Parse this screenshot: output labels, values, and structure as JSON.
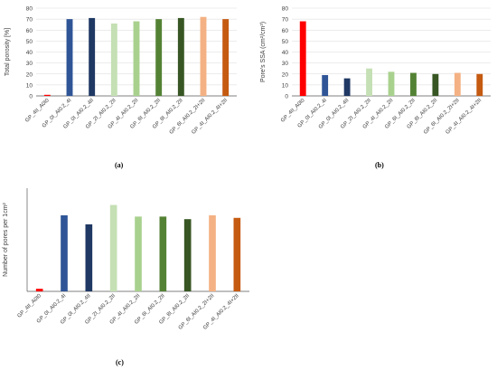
{
  "colors": {
    "red": "#ff0000",
    "blue": "#2f5597",
    "navy": "#1f3864",
    "light_green": "#c5e0b4",
    "mid_green": "#a9d18e",
    "green": "#548235",
    "dark_green": "#375623",
    "peach": "#f4b183",
    "orange": "#c55a11",
    "grid": "#d9d9d9",
    "axis": "#595959"
  },
  "chart_data": [
    {
      "type": "bar",
      "caption": "(a)",
      "ylabel": "Total porosity [%]",
      "xlabel": "",
      "ylim": [
        0,
        80
      ],
      "yticks": [
        "0",
        "10",
        "20",
        "30",
        "40",
        "50",
        "60",
        "70",
        "80"
      ],
      "grid": true,
      "categories": [
        "GP_4II_A0I0",
        "GP_0I_AI0.2_4I",
        "GP_0I_AI0.2_4II",
        "GP_2I_AI0.2_2II",
        "GP_4I_AI0.2_2II",
        "GP_6I_AI0.2_2II",
        "GP_8I_AI0.2_2II",
        "GP_6I_AI0.2_2I+2II",
        "GP_4I_AI0.2_4I+2II"
      ],
      "values": [
        1,
        70,
        71,
        66,
        68,
        70,
        71,
        72,
        70
      ],
      "bar_colors": [
        "red",
        "blue",
        "navy",
        "light_green",
        "mid_green",
        "green",
        "dark_green",
        "peach",
        "orange"
      ]
    },
    {
      "type": "bar",
      "caption": "(b)",
      "ylabel": "Pore's SSA  (cm²/cm³)",
      "xlabel": "",
      "ylim": [
        0,
        80
      ],
      "yticks": [
        "0",
        "10",
        "20",
        "30",
        "40",
        "50",
        "60",
        "70",
        "80"
      ],
      "grid": true,
      "categories": [
        "GP_4II_A0I0",
        "GP_0I_AI0.2_4I",
        "GP_0I_AI0.2_4II",
        "GP_2I_AI0.2_2II",
        "GP_4I_AI0.2_2II",
        "GP_6I_AI0.2_2II",
        "GP_8I_AI0.2_2II",
        "GP_6I_AI0.2_2I+2II",
        "GP_4I_AI0.2_4I+2II"
      ],
      "values": [
        68,
        19,
        16,
        25,
        22,
        21,
        20,
        21,
        20
      ],
      "bar_colors": [
        "red",
        "blue",
        "navy",
        "light_green",
        "mid_green",
        "green",
        "dark_green",
        "peach",
        "orange"
      ]
    },
    {
      "type": "bar",
      "caption": "(c)",
      "ylabel": "Number of pores per 1cm²",
      "xlabel": "",
      "ylim": [
        0,
        80
      ],
      "yticks": [
        "0",
        "10",
        "20",
        "30",
        "40",
        "50",
        "60",
        "70",
        "80"
      ],
      "grid": false,
      "categories": [
        "GP_4II_A0I0",
        "GP_0I_AI0.2_4I",
        "GP_0I_AI0.2_4II",
        "GP_2I_AI0.2_2II",
        "GP_4I_AI0.2_2II",
        "GP_6I_AI0.2_2II",
        "GP_8I_AI0.2_2II",
        "GP_6I_AI0.2_2I+2II",
        "GP_4I_AI0.2_4I+2II"
      ],
      "values": [
        2,
        59,
        52,
        67,
        58,
        58,
        56,
        59,
        57
      ],
      "bar_colors": [
        "red",
        "blue",
        "navy",
        "light_green",
        "mid_green",
        "green",
        "dark_green",
        "peach",
        "orange"
      ]
    }
  ]
}
